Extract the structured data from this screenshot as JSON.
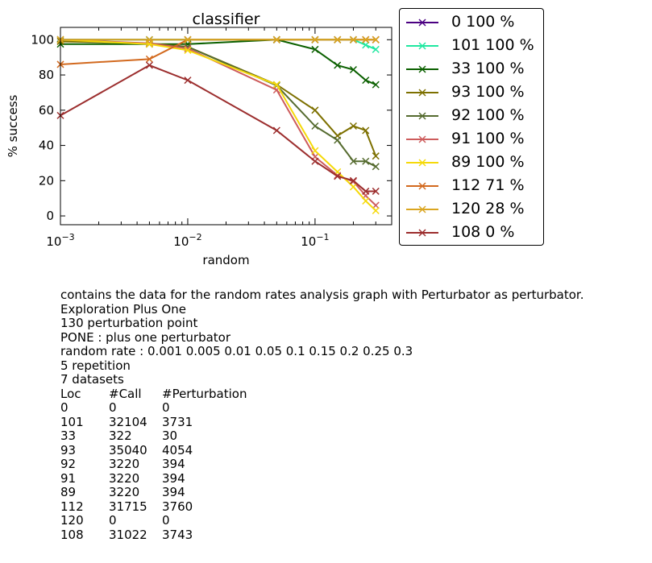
{
  "chart_data": {
    "type": "line",
    "title": "classifier",
    "xlabel": "random",
    "ylabel": "% success",
    "xscale": "log",
    "xlim": [
      0.001,
      0.4
    ],
    "ylim": [
      -5,
      107
    ],
    "x_ticks": [
      {
        "value": 0.001,
        "label": "10",
        "exp": "−3"
      },
      {
        "value": 0.01,
        "label": "10",
        "exp": "−2"
      },
      {
        "value": 0.1,
        "label": "10",
        "exp": "−1"
      }
    ],
    "y_ticks": [
      0,
      20,
      40,
      60,
      80,
      100
    ],
    "marker": "x",
    "legend_position": "outside-right",
    "series": [
      {
        "name": "0 100 %",
        "color": "#4b0082",
        "x": [
          0.001,
          0.005,
          0.01,
          0.05,
          0.1,
          0.15,
          0.2,
          0.25,
          0.3
        ],
        "y": [
          100,
          100,
          100,
          100,
          100,
          100,
          100,
          100,
          100
        ]
      },
      {
        "name": "101 100 %",
        "color": "#1fe8a0",
        "x": [
          0.001,
          0.005,
          0.01,
          0.05,
          0.1,
          0.15,
          0.2,
          0.25,
          0.3
        ],
        "y": [
          100,
          100,
          100,
          100,
          100,
          100,
          100,
          97,
          94.5
        ]
      },
      {
        "name": "33 100 %",
        "color": "#0b6000",
        "x": [
          0.001,
          0.005,
          0.01,
          0.05,
          0.1,
          0.15,
          0.2,
          0.25,
          0.3
        ],
        "y": [
          97.5,
          97.5,
          97.5,
          100,
          94.5,
          85.5,
          83,
          77,
          74.5
        ]
      },
      {
        "name": "93 100 %",
        "color": "#7d7000",
        "x": [
          0.001,
          0.005,
          0.01,
          0.05,
          0.1,
          0.15,
          0.2,
          0.25,
          0.3
        ],
        "y": [
          99,
          98,
          96,
          74.5,
          60,
          45.5,
          51,
          48.5,
          34
        ]
      },
      {
        "name": "92 100 %",
        "color": "#556b2f",
        "x": [
          0.001,
          0.005,
          0.01,
          0.05,
          0.1,
          0.15,
          0.2,
          0.25,
          0.3
        ],
        "y": [
          100,
          97.5,
          96,
          74,
          51,
          43,
          31,
          31,
          28
        ]
      },
      {
        "name": "91 100 %",
        "color": "#cd5c5c",
        "x": [
          0.001,
          0.005,
          0.01,
          0.05,
          0.1,
          0.15,
          0.2,
          0.25,
          0.3
        ],
        "y": [
          100,
          98,
          95,
          71.5,
          33.5,
          23,
          19.5,
          11.5,
          6
        ]
      },
      {
        "name": "89 100 %",
        "color": "#f5d90a",
        "x": [
          0.001,
          0.005,
          0.01,
          0.05,
          0.1,
          0.15,
          0.2,
          0.25,
          0.3
        ],
        "y": [
          100,
          97.5,
          94,
          74.5,
          37,
          25,
          16.5,
          8.5,
          3
        ]
      },
      {
        "name": "112 71 %",
        "color": "#d2691e",
        "x": [
          0.001,
          0.005,
          0.01,
          0.05,
          0.1,
          0.15,
          0.2,
          0.25,
          0.3
        ],
        "y": [
          86,
          89,
          100,
          100,
          100,
          100,
          100,
          100,
          100
        ]
      },
      {
        "name": "120 28 %",
        "color": "#daa520",
        "x": [
          0.001,
          0.005,
          0.01,
          0.05,
          0.1,
          0.15,
          0.2,
          0.25,
          0.3
        ],
        "y": [
          100,
          100,
          100,
          100,
          100,
          100,
          100,
          100,
          100
        ]
      },
      {
        "name": "108 0 %",
        "color": "#9c2e2e",
        "x": [
          0.001,
          0.005,
          0.01,
          0.05,
          0.1,
          0.15,
          0.2,
          0.25,
          0.3
        ],
        "y": [
          57,
          85.5,
          77,
          48.5,
          31,
          22.5,
          20,
          14,
          14
        ]
      }
    ]
  },
  "description": {
    "lines": [
      "contains the data for the random rates analysis graph with Perturbator as perturbator.",
      "Exploration Plus One",
      "130 perturbation point",
      "PONE : plus one perturbator",
      "random rate : 0.001 0.005 0.01 0.05 0.1 0.15 0.2 0.25 0.3",
      "5 repetition",
      "7 datasets"
    ],
    "table": {
      "headers": [
        "Loc",
        "#Call",
        "#Perturbation"
      ],
      "rows": [
        [
          "0",
          "0",
          "0"
        ],
        [
          "101",
          "32104",
          "3731"
        ],
        [
          "33",
          "322",
          "30"
        ],
        [
          "93",
          "35040",
          "4054"
        ],
        [
          "92",
          "3220",
          "394"
        ],
        [
          "91",
          "3220",
          "394"
        ],
        [
          "89",
          "3220",
          "394"
        ],
        [
          "112",
          "31715",
          "3760"
        ],
        [
          "120",
          "0",
          "0"
        ],
        [
          "108",
          "31022",
          "3743"
        ]
      ]
    }
  }
}
